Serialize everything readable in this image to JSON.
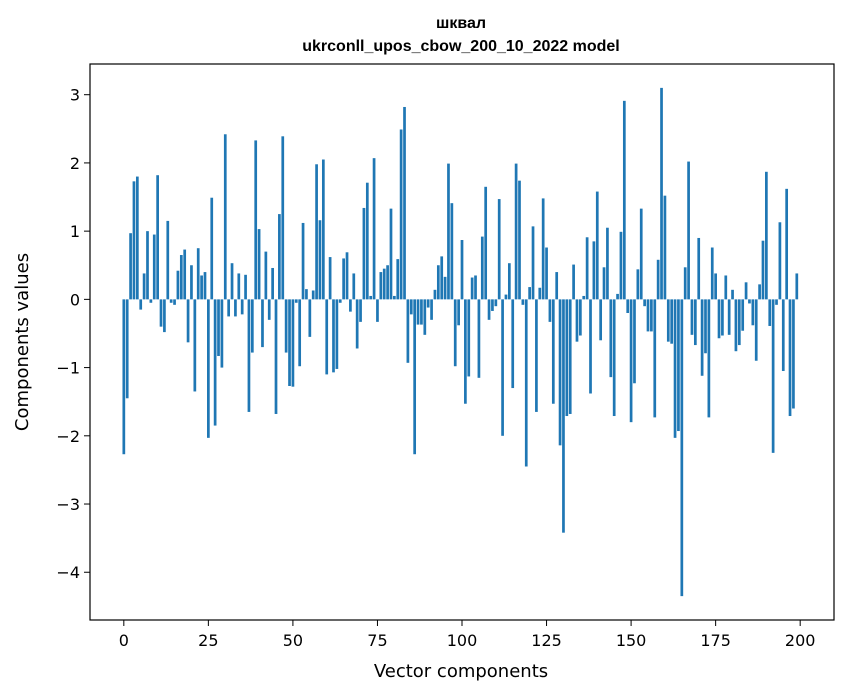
{
  "chart_data": {
    "type": "bar",
    "title": "шквал",
    "subtitle": "ukrconll_upos_cbow_200_10_2022 model",
    "xlabel": "Vector components",
    "ylabel": "Components values",
    "xlim": [
      -10,
      210
    ],
    "ylim": [
      -4.7,
      3.45
    ],
    "xticks": [
      0,
      25,
      50,
      75,
      100,
      125,
      150,
      175,
      200
    ],
    "xtick_labels": [
      "0",
      "25",
      "50",
      "75",
      "100",
      "125",
      "150",
      "175",
      "200"
    ],
    "yticks": [
      -4,
      -3,
      -2,
      -1,
      0,
      1,
      2,
      3
    ],
    "ytick_labels": [
      "−4",
      "−3",
      "−2",
      "−1",
      "0",
      "1",
      "2",
      "3"
    ],
    "bar_color": "#1f77b4",
    "grid": false,
    "x": [
      0,
      1,
      2,
      3,
      4,
      5,
      6,
      7,
      8,
      9,
      10,
      11,
      12,
      13,
      14,
      15,
      16,
      17,
      18,
      19,
      20,
      21,
      22,
      23,
      24,
      25,
      26,
      27,
      28,
      29,
      30,
      31,
      32,
      33,
      34,
      35,
      36,
      37,
      38,
      39,
      40,
      41,
      42,
      43,
      44,
      45,
      46,
      47,
      48,
      49,
      50,
      51,
      52,
      53,
      54,
      55,
      56,
      57,
      58,
      59,
      60,
      61,
      62,
      63,
      64,
      65,
      66,
      67,
      68,
      69,
      70,
      71,
      72,
      73,
      74,
      75,
      76,
      77,
      78,
      79,
      80,
      81,
      82,
      83,
      84,
      85,
      86,
      87,
      88,
      89,
      90,
      91,
      92,
      93,
      94,
      95,
      96,
      97,
      98,
      99,
      100,
      101,
      102,
      103,
      104,
      105,
      106,
      107,
      108,
      109,
      110,
      111,
      112,
      113,
      114,
      115,
      116,
      117,
      118,
      119,
      120,
      121,
      122,
      123,
      124,
      125,
      126,
      127,
      128,
      129,
      130,
      131,
      132,
      133,
      134,
      135,
      136,
      137,
      138,
      139,
      140,
      141,
      142,
      143,
      144,
      145,
      146,
      147,
      148,
      149,
      150,
      151,
      152,
      153,
      154,
      155,
      156,
      157,
      158,
      159,
      160,
      161,
      162,
      163,
      164,
      165,
      166,
      167,
      168,
      169,
      170,
      171,
      172,
      173,
      174,
      175,
      176,
      177,
      178,
      179,
      180,
      181,
      182,
      183,
      184,
      185,
      186,
      187,
      188,
      189,
      190,
      191,
      192,
      193,
      194,
      195,
      196,
      197,
      198,
      199
    ],
    "values": [
      -2.27,
      -1.45,
      0.97,
      1.73,
      1.8,
      -0.15,
      0.38,
      1.0,
      -0.05,
      0.95,
      1.82,
      -0.4,
      -0.48,
      1.15,
      -0.05,
      -0.08,
      0.42,
      0.65,
      0.73,
      -0.63,
      0.5,
      -1.35,
      0.75,
      0.35,
      0.4,
      -2.03,
      1.49,
      -1.85,
      -0.83,
      -1.0,
      2.42,
      -0.25,
      0.53,
      -0.25,
      0.38,
      -0.22,
      0.36,
      -1.65,
      -0.78,
      2.33,
      1.03,
      -0.7,
      0.7,
      -0.3,
      0.46,
      -1.68,
      1.25,
      2.39,
      -0.78,
      -1.27,
      -1.28,
      -0.05,
      -0.98,
      1.12,
      0.15,
      -0.55,
      0.13,
      1.98,
      1.16,
      2.05,
      -1.1,
      0.62,
      -1.07,
      -1.02,
      -0.05,
      0.6,
      0.69,
      -0.18,
      0.38,
      -0.72,
      -0.33,
      1.34,
      1.71,
      0.05,
      2.07,
      -0.33,
      0.4,
      0.45,
      0.5,
      1.33,
      0.05,
      0.59,
      2.49,
      2.82,
      -0.93,
      -0.22,
      -2.27,
      -0.37,
      -0.37,
      -0.52,
      -0.12,
      -0.3,
      0.14,
      0.5,
      0.63,
      0.33,
      1.99,
      1.41,
      -0.98,
      -0.38,
      0.87,
      -1.53,
      -1.13,
      0.32,
      0.35,
      -1.15,
      0.92,
      1.65,
      -0.3,
      -0.17,
      -0.1,
      1.47,
      -2.0,
      0.07,
      0.53,
      -1.3,
      1.99,
      1.74,
      -0.08,
      -2.45,
      0.18,
      1.07,
      -1.65,
      0.17,
      1.48,
      0.76,
      -0.33,
      -1.53,
      0.4,
      -2.14,
      -3.42,
      -1.71,
      -1.68,
      0.51,
      -0.62,
      -0.53,
      0.05,
      0.91,
      -1.38,
      0.85,
      1.58,
      -0.6,
      0.47,
      1.05,
      -1.14,
      -1.71,
      0.08,
      0.99,
      2.91,
      -0.2,
      -1.8,
      -1.23,
      0.44,
      1.33,
      -0.1,
      -0.47,
      -0.47,
      -1.73,
      0.58,
      3.1,
      1.52,
      -0.62,
      -0.65,
      -2.03,
      -1.93,
      -4.35,
      0.47,
      2.02,
      -0.52,
      -0.67,
      0.9,
      -1.12,
      -0.79,
      -1.73,
      0.76,
      0.38,
      -0.57,
      -0.53,
      0.35,
      -0.52,
      0.14,
      -0.76,
      -0.67,
      -0.46,
      0.25,
      -0.06,
      -0.38,
      -0.9,
      0.22,
      0.86,
      1.87,
      -0.39,
      -2.25,
      -0.08,
      1.13,
      -1.05,
      1.62,
      -1.71,
      -1.6,
      0.38
    ]
  }
}
